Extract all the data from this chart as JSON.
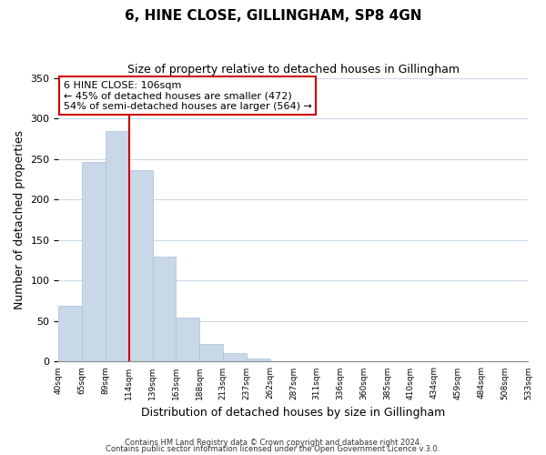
{
  "title": "6, HINE CLOSE, GILLINGHAM, SP8 4GN",
  "subtitle": "Size of property relative to detached houses in Gillingham",
  "xlabel": "Distribution of detached houses by size in Gillingham",
  "ylabel": "Number of detached properties",
  "bar_values": [
    69,
    246,
    284,
    236,
    129,
    54,
    22,
    11,
    4,
    1,
    0,
    0,
    0,
    0,
    0,
    0,
    0,
    0,
    0,
    1
  ],
  "bin_labels": [
    "40sqm",
    "65sqm",
    "89sqm",
    "114sqm",
    "139sqm",
    "163sqm",
    "188sqm",
    "213sqm",
    "237sqm",
    "262sqm",
    "287sqm",
    "311sqm",
    "336sqm",
    "360sqm",
    "385sqm",
    "410sqm",
    "434sqm",
    "459sqm",
    "484sqm",
    "508sqm",
    "533sqm"
  ],
  "bar_color": "#c8d8e8",
  "bar_edge_color": "#a8c0d4",
  "vline_x": 2.5,
  "vline_color": "#cc0000",
  "annotation_title": "6 HINE CLOSE: 106sqm",
  "annotation_line1": "← 45% of detached houses are smaller (472)",
  "annotation_line2": "54% of semi-detached houses are larger (564) →",
  "annotation_box_color": "#ffffff",
  "annotation_box_edge": "#cc0000",
  "ylim": [
    0,
    350
  ],
  "yticks": [
    0,
    50,
    100,
    150,
    200,
    250,
    300,
    350
  ],
  "footer1": "Contains HM Land Registry data © Crown copyright and database right 2024.",
  "footer2": "Contains public sector information licensed under the Open Government Licence v.3.0."
}
